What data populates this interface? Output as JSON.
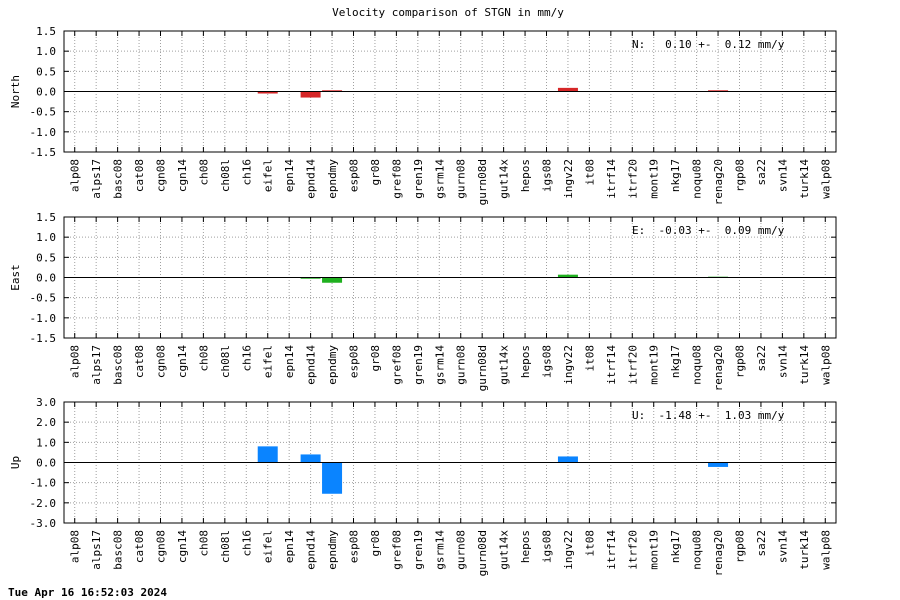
{
  "chart_data": {
    "title": "Velocity comparison of STGN in mm/y",
    "categories": [
      "alp08",
      "alps17",
      "basc08",
      "cat08",
      "cgn08",
      "cgn14",
      "ch08",
      "ch08l",
      "ch16",
      "eifel",
      "epn14",
      "epnd14",
      "epndmy",
      "esp08",
      "gr08",
      "gref08",
      "gren19",
      "gsrm14",
      "gurn08",
      "gurn08d",
      "gut14x",
      "hepos",
      "igs08",
      "ingv22",
      "it08",
      "itrf14",
      "itrf20",
      "mont19",
      "nkg17",
      "noqu08",
      "renag20",
      "rgp08",
      "sa22",
      "svn14",
      "turk14",
      "walp08"
    ],
    "footer": "Tue Apr 16 16:52:03 2024",
    "panels": [
      {
        "type": "bar",
        "ylabel": "North",
        "ylim": [
          -1.5,
          1.5
        ],
        "yticks": [
          "1.5",
          "1.0",
          "0.5",
          "0.0",
          "-0.5",
          "-1.0",
          "-1.5"
        ],
        "ytick_values": [
          1.5,
          1.0,
          0.5,
          0.0,
          -0.5,
          -1.0,
          -1.5
        ],
        "color": "#d62728",
        "grid": true,
        "annotation": "N:   0.10 +-  0.12 mm/y",
        "values": [
          0,
          0,
          0,
          0,
          0,
          0,
          0,
          0,
          0,
          -0.05,
          0,
          -0.15,
          0.03,
          0,
          0,
          0,
          0,
          0,
          0,
          0,
          0,
          0,
          0,
          0.09,
          0,
          0,
          0,
          0,
          0,
          0,
          0.03,
          0,
          0,
          0,
          0,
          0
        ]
      },
      {
        "type": "bar",
        "ylabel": "East",
        "ylim": [
          -1.5,
          1.5
        ],
        "yticks": [
          "1.5",
          "1.0",
          "0.5",
          "0.0",
          "-0.5",
          "-1.0",
          "-1.5"
        ],
        "ytick_values": [
          1.5,
          1.0,
          0.5,
          0.0,
          -0.5,
          -1.0,
          -1.5
        ],
        "color": "#1fb01f",
        "grid": true,
        "annotation": "E:  -0.03 +-  0.09 mm/y",
        "values": [
          0,
          0,
          0,
          0,
          0,
          0,
          0,
          0,
          0,
          0,
          0,
          -0.03,
          -0.13,
          0,
          0,
          0,
          0,
          0,
          0,
          0,
          0,
          0,
          0,
          0.07,
          0,
          0,
          0,
          0,
          0,
          0,
          0.02,
          0,
          0,
          0,
          0,
          0
        ]
      },
      {
        "type": "bar",
        "ylabel": "Up",
        "ylim": [
          -3.0,
          3.0
        ],
        "yticks": [
          "3.0",
          "2.0",
          "1.0",
          "0.0",
          "-1.0",
          "-2.0",
          "-3.0"
        ],
        "ytick_values": [
          3.0,
          2.0,
          1.0,
          0.0,
          -1.0,
          -2.0,
          -3.0
        ],
        "color": "#0a84ff",
        "grid": true,
        "annotation": "U:  -1.48 +-  1.03 mm/y",
        "values": [
          0,
          0,
          0,
          0,
          0,
          0,
          0,
          0,
          0,
          0.8,
          0,
          0.4,
          -1.55,
          0,
          0,
          0,
          0,
          0,
          0,
          0,
          0,
          0,
          0,
          0.3,
          0,
          0,
          0,
          0,
          0,
          0,
          -0.22,
          0,
          0,
          0,
          0,
          0
        ]
      }
    ]
  }
}
